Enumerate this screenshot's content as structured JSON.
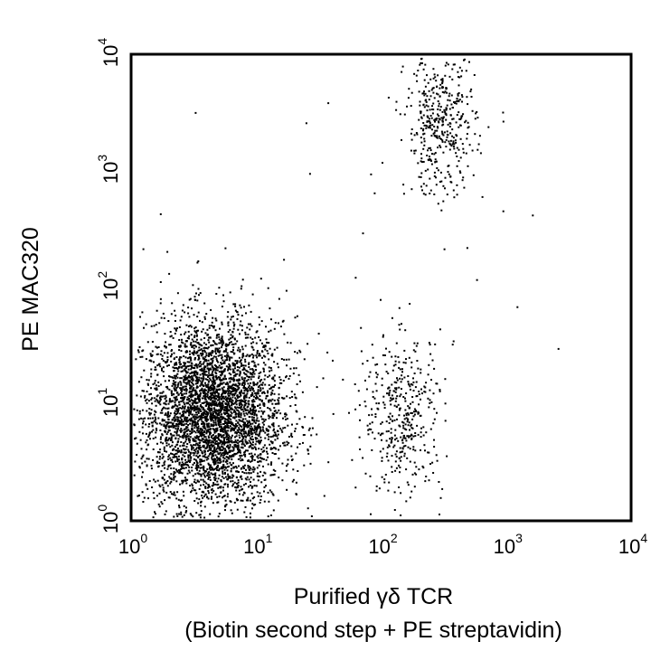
{
  "chart_data": {
    "type": "scatter",
    "title": "",
    "xlabel": "Purified γδ TCR",
    "xlabel_line2": "(Biotin second step + PE streptavidin)",
    "ylabel": "PE MAC320",
    "x_scale": "log",
    "y_scale": "log",
    "xlim": [
      1,
      10000
    ],
    "ylim": [
      1,
      10000
    ],
    "grid": false,
    "legend": "none",
    "point_color": "#000000",
    "x_ticks": [
      {
        "base": "10",
        "exp": "0"
      },
      {
        "base": "10",
        "exp": "1"
      },
      {
        "base": "10",
        "exp": "2"
      },
      {
        "base": "10",
        "exp": "3"
      },
      {
        "base": "10",
        "exp": "4"
      }
    ],
    "y_ticks": [
      {
        "base": "10",
        "exp": "0"
      },
      {
        "base": "10",
        "exp": "1"
      },
      {
        "base": "10",
        "exp": "2"
      },
      {
        "base": "10",
        "exp": "3"
      },
      {
        "base": "10",
        "exp": "4"
      }
    ],
    "populations": [
      {
        "center_x": 4.5,
        "center_y": 8,
        "spread_log_x": 0.28,
        "spread_log_y": 0.4,
        "events": 4200
      },
      {
        "center_x": 150,
        "center_y": 8,
        "spread_log_x": 0.16,
        "spread_log_y": 0.35,
        "events": 420
      },
      {
        "center_x": 300,
        "center_y": 2500,
        "spread_log_x": 0.14,
        "spread_log_y": 0.3,
        "events": 430
      },
      {
        "center_x": 30,
        "center_y": 100,
        "spread_log_x": 0.9,
        "spread_log_y": 0.9,
        "events": 60
      }
    ]
  }
}
